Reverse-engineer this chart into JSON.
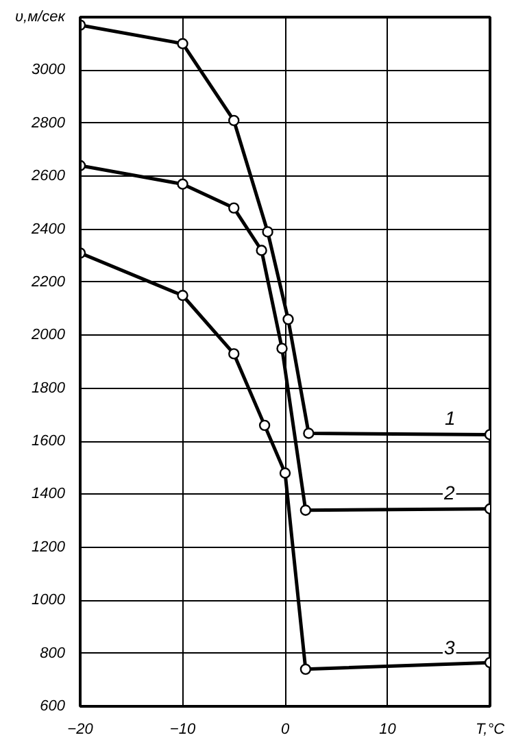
{
  "chart_data": {
    "type": "line",
    "xlim": [
      -20,
      20
    ],
    "ylim": [
      600,
      3200
    ],
    "xticks": [
      -20,
      -10,
      0,
      10,
      {
        "value": 20,
        "label": "T,°C"
      }
    ],
    "yticks": [
      600,
      800,
      1000,
      1200,
      1400,
      1600,
      1800,
      2000,
      2200,
      2400,
      2600,
      2800,
      3000,
      {
        "value": 3200,
        "label": "υ,м/сек"
      }
    ],
    "grid": true,
    "marker": "circle",
    "line_style": "solid",
    "series": [
      {
        "name": "1",
        "color": "#000000",
        "x": [
          -20,
          -10,
          -5,
          -1.7,
          0.3,
          2.3,
          20
        ],
        "values": [
          3170,
          3100,
          2810,
          2390,
          2060,
          1630,
          1625
        ]
      },
      {
        "name": "2",
        "color": "#000000",
        "x": [
          -20,
          -10,
          -5,
          -2.3,
          -0.3,
          2,
          20
        ],
        "values": [
          2640,
          2570,
          2480,
          2320,
          1950,
          1340,
          1345
        ]
      },
      {
        "name": "3",
        "color": "#000000",
        "x": [
          -20,
          -10,
          -5,
          -2,
          0,
          2,
          20
        ],
        "values": [
          2310,
          2150,
          1930,
          1660,
          1480,
          740,
          765
        ]
      }
    ]
  }
}
